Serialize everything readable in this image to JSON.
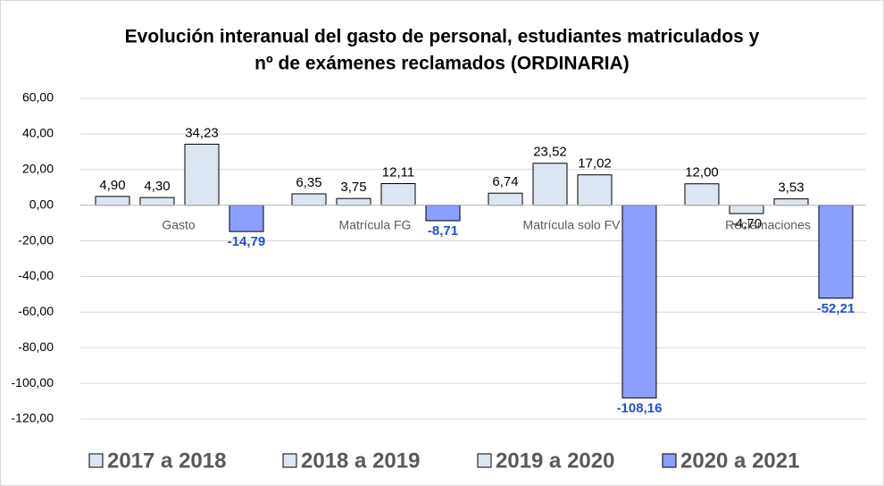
{
  "chart_data": {
    "type": "bar",
    "title": [
      "Evolución interanual del gasto de personal, estudiantes matriculados y",
      "nº de exámenes reclamados (ORDINARIA)"
    ],
    "categories": [
      "Gasto",
      "Matrícula FG",
      "Matrícula solo FV",
      "Reclamaciones"
    ],
    "series": [
      {
        "name": "2017 a 2018",
        "color": "#dce6f2",
        "values": [
          4.9,
          6.35,
          6.74,
          12.0
        ],
        "value_labels": [
          "4,90",
          "6,35",
          "6,74",
          "12,00"
        ]
      },
      {
        "name": "2018 a 2019",
        "color": "#dce6f2",
        "values": [
          4.3,
          3.75,
          23.52,
          -4.7
        ],
        "value_labels": [
          "4,30",
          "3,75",
          "23,52",
          "-4,70"
        ]
      },
      {
        "name": "2019 a 2020",
        "color": "#dce6f2",
        "values": [
          34.23,
          12.11,
          17.02,
          3.53
        ],
        "value_labels": [
          "34,23",
          "12,11",
          "17,02",
          "3,53"
        ]
      },
      {
        "name": "2020 a 2021",
        "color": "#8c9eff",
        "values": [
          -14.79,
          -8.71,
          -108.16,
          -52.21
        ],
        "value_labels": [
          "-14,79",
          "-8,71",
          "-108,16",
          "-52,21"
        ]
      }
    ],
    "ylim": [
      -120,
      60
    ],
    "yticks": [
      {
        "value": -120,
        "label": "-120,00"
      },
      {
        "value": -100,
        "label": "-100,00"
      },
      {
        "value": -80,
        "label": "-80,00"
      },
      {
        "value": -60,
        "label": "-60,00"
      },
      {
        "value": -40,
        "label": "-40,00"
      },
      {
        "value": -20,
        "label": "-20,00"
      },
      {
        "value": 0,
        "label": "0,00"
      },
      {
        "value": 20,
        "label": "20,00"
      },
      {
        "value": 40,
        "label": "40,00"
      },
      {
        "value": 60,
        "label": "60,00"
      }
    ],
    "grid": true,
    "legend": "bottom"
  }
}
